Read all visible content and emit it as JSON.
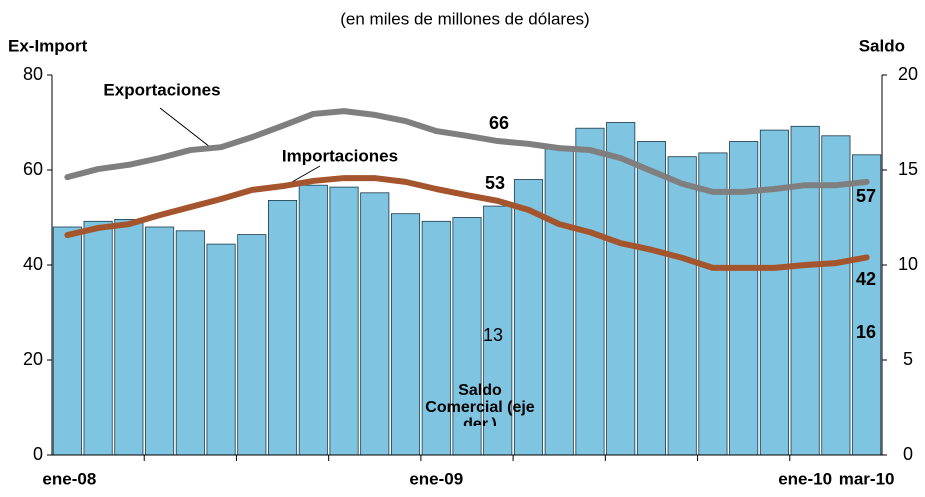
{
  "chart_data": {
    "type": "bar_line",
    "title": "(en miles de millones de dólares)",
    "ylabel": "Ex-Import",
    "y2label": "Saldo",
    "categories": [
      "ene-08",
      null,
      null,
      null,
      null,
      null,
      null,
      null,
      null,
      null,
      null,
      null,
      "ene-09",
      null,
      null,
      null,
      null,
      null,
      null,
      null,
      null,
      null,
      null,
      null,
      "ene-10",
      null,
      "mar-10"
    ],
    "ylim": [
      0,
      80
    ],
    "yticks": [
      0,
      20,
      40,
      60,
      80
    ],
    "y2lim": [
      0,
      20
    ],
    "y2ticks": [
      0,
      5,
      10,
      15,
      20
    ],
    "series": [
      {
        "name": "Saldo Comercial (eje der.)",
        "type": "bar",
        "axis": "y2",
        "color": "#7fc4e0",
        "values": [
          12.0,
          12.3,
          12.4,
          12.0,
          11.8,
          11.1,
          11.6,
          13.4,
          14.2,
          14.1,
          13.8,
          12.7,
          12.3,
          12.5,
          13.1,
          14.5,
          16.1,
          17.2,
          17.5,
          16.5,
          15.7,
          15.9,
          16.5,
          17.1,
          17.3,
          16.8,
          15.8
        ]
      },
      {
        "name": "Exportaciones",
        "type": "line",
        "color": "#7f7f7f",
        "values": [
          58.5,
          60.2,
          61.1,
          62.5,
          64.2,
          64.8,
          66.9,
          69.3,
          71.8,
          72.4,
          71.6,
          70.3,
          68.2,
          67.2,
          66.1,
          65.5,
          64.6,
          64.2,
          62.5,
          59.8,
          57.1,
          55.4,
          55.4,
          56.0,
          56.8,
          56.8,
          57.5
        ]
      },
      {
        "name": "Importaciones",
        "type": "line",
        "color": "#a5552d",
        "values": [
          46.3,
          47.8,
          48.6,
          50.5,
          52.2,
          53.9,
          55.8,
          56.6,
          57.7,
          58.3,
          58.3,
          57.5,
          56.0,
          54.7,
          53.5,
          51.6,
          48.6,
          46.9,
          44.6,
          43.2,
          41.5,
          39.4,
          39.4,
          39.4,
          40.0,
          40.4,
          41.6
        ]
      }
    ],
    "annotations": [
      "66",
      "53",
      "13",
      "57",
      "42",
      "16"
    ]
  }
}
